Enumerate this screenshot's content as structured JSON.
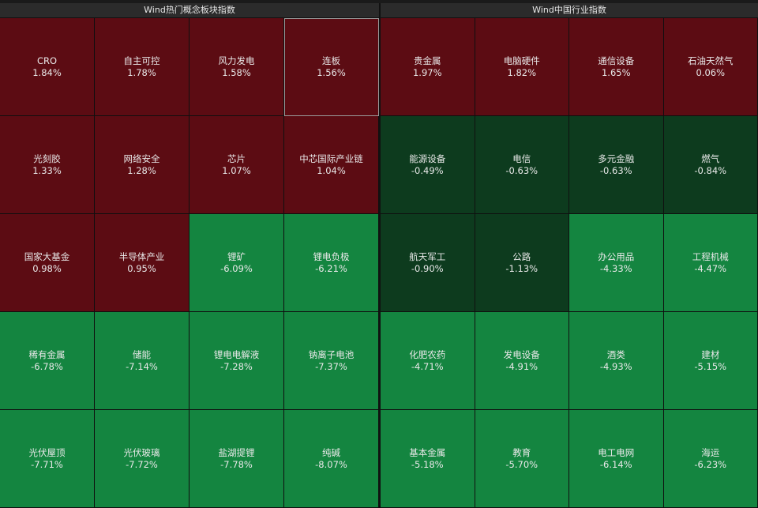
{
  "colors": {
    "up": "#5c0c13",
    "down_dark": "#0d3b1e",
    "down_bright": "#148540"
  },
  "left_panel": {
    "title": "Wind热门概念板块指数",
    "tiles": [
      {
        "name": "CRO",
        "pct": "1.84%",
        "color": "up"
      },
      {
        "name": "自主可控",
        "pct": "1.78%",
        "color": "up"
      },
      {
        "name": "风力发电",
        "pct": "1.58%",
        "color": "up"
      },
      {
        "name": "连板",
        "pct": "1.56%",
        "color": "up",
        "selected": true
      },
      {
        "name": "光刻胶",
        "pct": "1.33%",
        "color": "up"
      },
      {
        "name": "网络安全",
        "pct": "1.28%",
        "color": "up"
      },
      {
        "name": "芯片",
        "pct": "1.07%",
        "color": "up"
      },
      {
        "name": "中芯国际产业链",
        "pct": "1.04%",
        "color": "up"
      },
      {
        "name": "国家大基金",
        "pct": "0.98%",
        "color": "up"
      },
      {
        "name": "半导体产业",
        "pct": "0.95%",
        "color": "up"
      },
      {
        "name": "锂矿",
        "pct": "-6.09%",
        "color": "down_bright"
      },
      {
        "name": "锂电负极",
        "pct": "-6.21%",
        "color": "down_bright"
      },
      {
        "name": "稀有金属",
        "pct": "-6.78%",
        "color": "down_bright"
      },
      {
        "name": "储能",
        "pct": "-7.14%",
        "color": "down_bright"
      },
      {
        "name": "锂电电解液",
        "pct": "-7.28%",
        "color": "down_bright"
      },
      {
        "name": "钠离子电池",
        "pct": "-7.37%",
        "color": "down_bright"
      },
      {
        "name": "光伏屋顶",
        "pct": "-7.71%",
        "color": "down_bright"
      },
      {
        "name": "光伏玻璃",
        "pct": "-7.72%",
        "color": "down_bright"
      },
      {
        "name": "盐湖提锂",
        "pct": "-7.78%",
        "color": "down_bright"
      },
      {
        "name": "纯碱",
        "pct": "-8.07%",
        "color": "down_bright"
      }
    ]
  },
  "right_panel": {
    "title": "Wind中国行业指数",
    "tiles": [
      {
        "name": "贵金属",
        "pct": "1.97%",
        "color": "up"
      },
      {
        "name": "电脑硬件",
        "pct": "1.82%",
        "color": "up"
      },
      {
        "name": "通信设备",
        "pct": "1.65%",
        "color": "up"
      },
      {
        "name": "石油天然气",
        "pct": "0.06%",
        "color": "up"
      },
      {
        "name": "能源设备",
        "pct": "-0.49%",
        "color": "down_dark"
      },
      {
        "name": "电信",
        "pct": "-0.63%",
        "color": "down_dark"
      },
      {
        "name": "多元金融",
        "pct": "-0.63%",
        "color": "down_dark"
      },
      {
        "name": "燃气",
        "pct": "-0.84%",
        "color": "down_dark"
      },
      {
        "name": "航天军工",
        "pct": "-0.90%",
        "color": "down_dark"
      },
      {
        "name": "公路",
        "pct": "-1.13%",
        "color": "down_dark"
      },
      {
        "name": "办公用品",
        "pct": "-4.33%",
        "color": "down_bright"
      },
      {
        "name": "工程机械",
        "pct": "-4.47%",
        "color": "down_bright"
      },
      {
        "name": "化肥农药",
        "pct": "-4.71%",
        "color": "down_bright"
      },
      {
        "name": "发电设备",
        "pct": "-4.91%",
        "color": "down_bright"
      },
      {
        "name": "酒类",
        "pct": "-4.93%",
        "color": "down_bright"
      },
      {
        "name": "建材",
        "pct": "-5.15%",
        "color": "down_bright"
      },
      {
        "name": "基本金属",
        "pct": "-5.18%",
        "color": "down_bright"
      },
      {
        "name": "教育",
        "pct": "-5.70%",
        "color": "down_bright"
      },
      {
        "name": "电工电网",
        "pct": "-6.14%",
        "color": "down_bright"
      },
      {
        "name": "海运",
        "pct": "-6.23%",
        "color": "down_bright"
      }
    ]
  }
}
